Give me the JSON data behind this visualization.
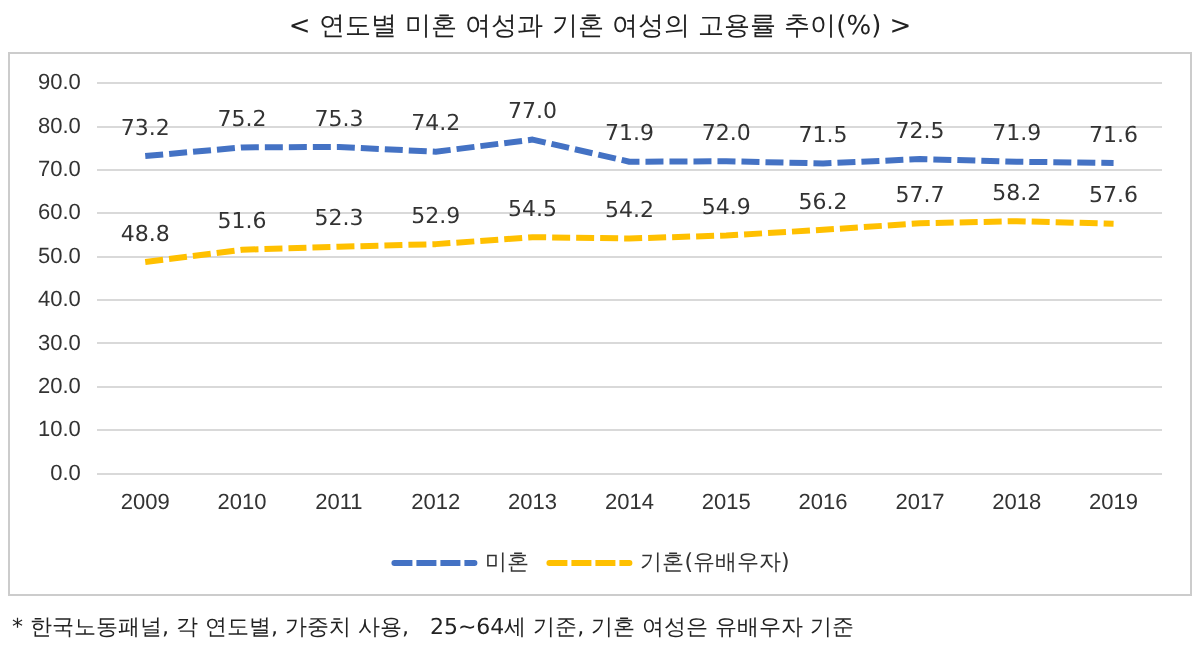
{
  "chart_data": {
    "type": "line",
    "title": "< 연도별 미혼 여성과 기혼 여성의 고용률 추이(%) >",
    "categories": [
      "2009",
      "2010",
      "2011",
      "2012",
      "2013",
      "2014",
      "2015",
      "2016",
      "2017",
      "2018",
      "2019"
    ],
    "series": [
      {
        "name": "미혼",
        "color": "#4472c4",
        "line_style": "dashed",
        "values": [
          73.2,
          75.2,
          75.3,
          74.2,
          77.0,
          71.9,
          72.0,
          71.5,
          72.5,
          71.9,
          71.6
        ],
        "value_labels": [
          "73.2",
          "75.2",
          "75.3",
          "74.2",
          "77.0",
          "71.9",
          "72.0",
          "71.5",
          "72.5",
          "71.9",
          "71.6"
        ]
      },
      {
        "name": "기혼(유배우자)",
        "color": "#ffc000",
        "line_style": "dashed",
        "values": [
          48.8,
          51.6,
          52.3,
          52.9,
          54.5,
          54.2,
          54.9,
          56.2,
          57.7,
          58.2,
          57.6
        ],
        "value_labels": [
          "48.8",
          "51.6",
          "52.3",
          "52.9",
          "54.5",
          "54.2",
          "54.9",
          "56.2",
          "57.7",
          "58.2",
          "57.6"
        ]
      }
    ],
    "ylim": [
      0,
      90
    ],
    "yticks": [
      {
        "value": 0,
        "label": "0.0"
      },
      {
        "value": 10,
        "label": "10.0"
      },
      {
        "value": 20,
        "label": "20.0"
      },
      {
        "value": 30,
        "label": "30.0"
      },
      {
        "value": 40,
        "label": "40.0"
      },
      {
        "value": 50,
        "label": "50.0"
      },
      {
        "value": 60,
        "label": "60.0"
      },
      {
        "value": 70,
        "label": "70.0"
      },
      {
        "value": 80,
        "label": "80.0"
      },
      {
        "value": 90,
        "label": "90.0"
      }
    ],
    "grid": "y",
    "legend": "bottom",
    "marker": "none",
    "annotations": [
      "* 한국노동패널, 각 연도별, 가중치 사용,   25~64세 기준, 기혼 여성은 유배우자 기준"
    ]
  }
}
